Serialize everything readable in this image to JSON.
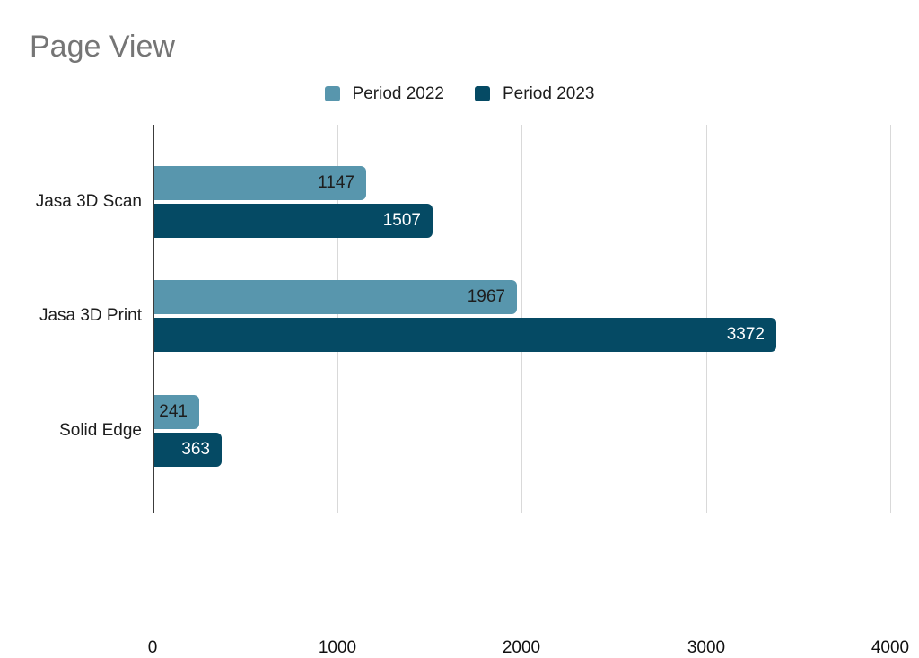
{
  "title": "Page View",
  "chart_data": {
    "type": "bar",
    "orientation": "horizontal",
    "title": "Page View",
    "categories": [
      "Jasa 3D Scan",
      "Jasa 3D Print",
      "Solid Edge"
    ],
    "series": [
      {
        "name": "Period 2022",
        "color": "#5896ad",
        "label_color": "#1d1d1d",
        "values": [
          1147,
          1967,
          241
        ]
      },
      {
        "name": "Period 2023",
        "color": "#054a64",
        "label_color": "#ffffff",
        "values": [
          1507,
          3372,
          363
        ]
      }
    ],
    "x_ticks": [
      0,
      1000,
      2000,
      3000,
      4000
    ],
    "xlim": [
      0,
      4000
    ],
    "xlabel": "",
    "ylabel": "",
    "grid": true,
    "legend_position": "top"
  },
  "colors": {
    "background": "#ffffff",
    "title_text": "#757575",
    "axis_line": "#3c3c3c",
    "gridline": "#d9d9d9",
    "tick_text": "#111111"
  }
}
